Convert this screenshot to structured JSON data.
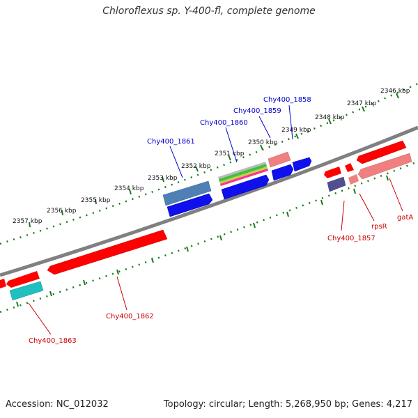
{
  "title": "Chloroflexus sp. Y-400-fl, complete genome",
  "accession": "Accession: NC_012032",
  "topology": "Topology: circular; Length: 5,268,950 bp; Genes: 4,217",
  "colors": {
    "backbone": "#808080",
    "ticks": "#1a7a1a",
    "plus_label": "#0000cc",
    "minus_label": "#cc0000",
    "red": "#ff0000",
    "pink": "#f08080",
    "blue": "#0000ee",
    "steelblue": "#4f7fb4",
    "cyan": "#20c0c0",
    "purple": "#505090"
  },
  "scale_labels": [
    "2346 kbp",
    "2347 kbp",
    "2348 kbp",
    "2349 kbp",
    "2350 kbp",
    "2351 kbp",
    "2352 kbp",
    "2353 kbp",
    "2354 kbp",
    "2355 kbp",
    "2356 kbp",
    "2357 kbp"
  ],
  "gene_labels": {
    "chy1858": "Chy400_1858",
    "chy1859": "Chy400_1859",
    "chy1860": "Chy400_1860",
    "chy1861": "Chy400_1861",
    "chy1857": "Chy400_1857",
    "rpsR": "rpsR",
    "gatA": "gatA",
    "chy1862": "Chy400_1862",
    "chy1863": "Chy400_1863"
  }
}
